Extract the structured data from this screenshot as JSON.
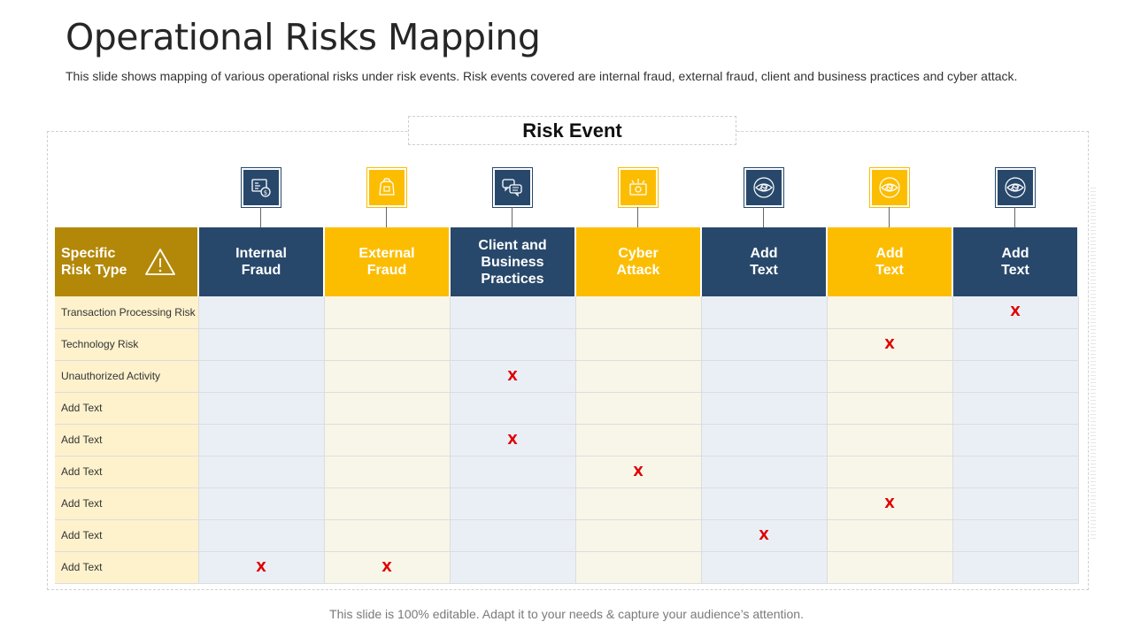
{
  "slide": {
    "title": "Operational Risks Mapping",
    "subtitle": "This slide shows mapping of various operational risks under risk events. Risk events covered are internal fraud, external fraud, client and business practices and cyber attack.",
    "risk_event_label": "Risk Event",
    "footer": "This slide is 100% editable. Adapt it to your needs & capture your audience’s attention."
  },
  "colors": {
    "navy": "#28486b",
    "gold": "#fcbd00",
    "risk_type_header": "#b38808",
    "mark": "#e00000"
  },
  "table": {
    "risk_type_header": [
      "Specific",
      "Risk Type"
    ],
    "risk_type_icon": "warning-triangle-icon",
    "columns": [
      {
        "lines": [
          "Internal",
          "Fraud"
        ],
        "icon": "fraud-document-icon",
        "color": "navy"
      },
      {
        "lines": [
          "External",
          "Fraud"
        ],
        "icon": "bag-icon",
        "color": "gold"
      },
      {
        "lines": [
          "Client and",
          "Business",
          "Practices"
        ],
        "icon": "chat-bubbles-icon",
        "color": "navy"
      },
      {
        "lines": [
          "Cyber",
          "Attack"
        ],
        "icon": "cyber-attack-icon",
        "color": "gold"
      },
      {
        "lines": [
          "Add",
          "Text"
        ],
        "icon": "eye-icon",
        "color": "navy"
      },
      {
        "lines": [
          "Add",
          "Text"
        ],
        "icon": "eye-icon",
        "color": "gold"
      },
      {
        "lines": [
          "Add",
          "Text"
        ],
        "icon": "eye-icon",
        "color": "navy"
      }
    ],
    "mark_symbol": "X",
    "rows": [
      {
        "label": "Transaction Processing Risk",
        "marks": [
          7
        ]
      },
      {
        "label": "Technology Risk",
        "marks": [
          6
        ]
      },
      {
        "label": "Unauthorized Activity",
        "marks": [
          3
        ]
      },
      {
        "label": "Add Text",
        "marks": []
      },
      {
        "label": "Add Text",
        "marks": [
          3
        ]
      },
      {
        "label": "Add Text",
        "marks": [
          4
        ]
      },
      {
        "label": "Add Text",
        "marks": [
          6
        ]
      },
      {
        "label": "Add Text",
        "marks": [
          5
        ]
      },
      {
        "label": "Add Text",
        "marks": [
          1,
          2
        ]
      }
    ]
  }
}
